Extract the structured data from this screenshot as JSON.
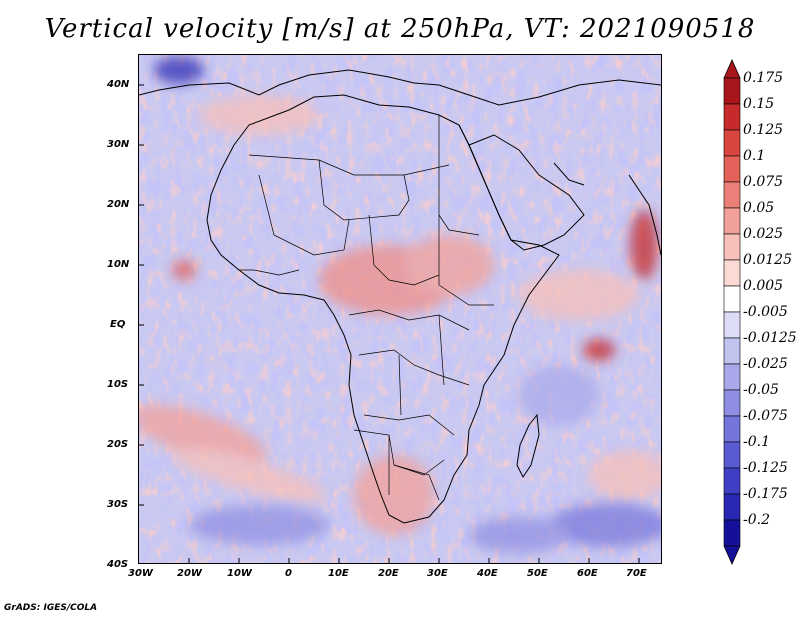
{
  "title": "Vertical velocity [m/s] at 250hPa, VT: 2021090518",
  "credit": "GrADS: IGES/COLA",
  "map": {
    "region": "Africa",
    "lat_range": [
      -40,
      45
    ],
    "lon_range": [
      -30,
      75
    ],
    "lat_ticks": [
      "40N",
      "30N",
      "20N",
      "10N",
      "EQ",
      "10S",
      "20S",
      "30S",
      "40S"
    ],
    "lon_ticks": [
      "30W",
      "20W",
      "10W",
      "0",
      "10E",
      "20E",
      "30E",
      "40E",
      "50E",
      "60E",
      "70E"
    ]
  },
  "colorbar": {
    "levels": [
      "0.175",
      "0.15",
      "0.125",
      "0.1",
      "0.075",
      "0.05",
      "0.025",
      "0.0125",
      "0.005",
      "-0.005",
      "-0.0125",
      "-0.025",
      "-0.05",
      "-0.075",
      "-0.1",
      "-0.125",
      "-0.175",
      "-0.2"
    ],
    "colors": [
      "#a8161c",
      "#c62a2a",
      "#d9453f",
      "#e4625a",
      "#ec8079",
      "#f2a19a",
      "#f7c0ba",
      "#fbdad6",
      "#ffffff",
      "#dcdcf6",
      "#c3c3f0",
      "#a8a8ea",
      "#8e8ee3",
      "#7474db",
      "#5a5ad2",
      "#4040c6",
      "#2828b4",
      "#15109a"
    ]
  }
}
